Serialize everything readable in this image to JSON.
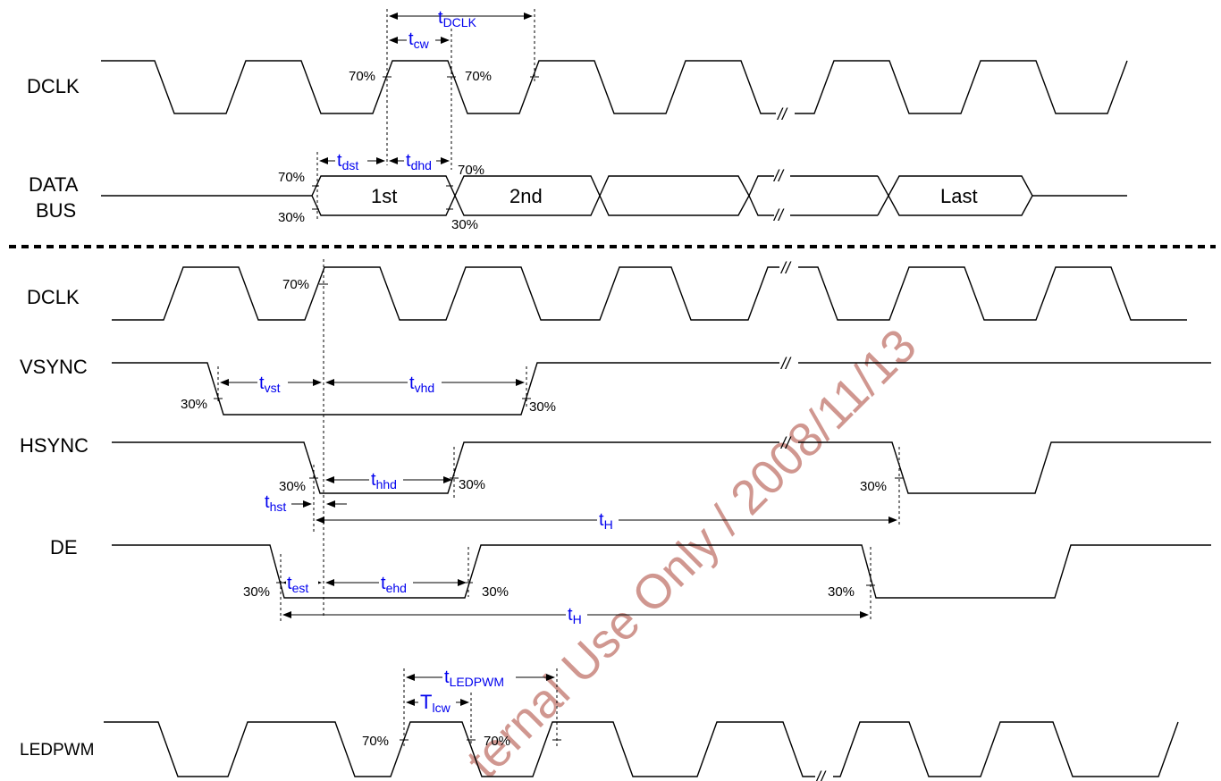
{
  "signals": {
    "dclk_top": "DCLK",
    "data_line1": "DATA",
    "data_line2": "BUS",
    "dclk_bottom": "DCLK",
    "vsync": "VSYNC",
    "hsync": "HSYNC",
    "de": "DE",
    "ledpwm": "LEDPWM"
  },
  "bus_labels": {
    "first": "1st",
    "second": "2nd",
    "last": "Last"
  },
  "timings": {
    "tdclk": {
      "main": "t",
      "sub": "DCLK"
    },
    "tcw": {
      "main": "t",
      "sub": "cw"
    },
    "tdst": {
      "main": "t",
      "sub": "dst"
    },
    "tdhd": {
      "main": "t",
      "sub": "dhd"
    },
    "tvst": {
      "main": "t",
      "sub": "vst"
    },
    "tvhd": {
      "main": "t",
      "sub": "vhd"
    },
    "thhd": {
      "main": "t",
      "sub": "hhd"
    },
    "thst": {
      "main": "t",
      "sub": "hst"
    },
    "th_hsync": {
      "main": "t",
      "sub": "H"
    },
    "test": {
      "main": "t",
      "sub": "est"
    },
    "tehd": {
      "main": "t",
      "sub": "ehd"
    },
    "th_de": {
      "main": "t",
      "sub": "H"
    },
    "tledpwm": {
      "main": "t",
      "sub": "LEDPWM"
    },
    "tlcw": {
      "main": "T",
      "sub": "lcw"
    }
  },
  "percent": {
    "p70": "70%",
    "p30": "30%"
  },
  "watermark": "ternal Use Only / 2008/11/13",
  "break_mark": "//",
  "colors": {
    "wave": "#000000",
    "timing_label": "#0000ee",
    "watermark": "#c8857d"
  }
}
